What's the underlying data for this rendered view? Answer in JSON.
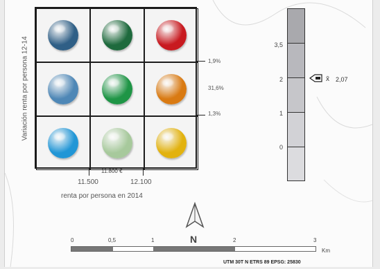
{
  "matrix": {
    "y_axis_label": "Variación renta por persona 12-14",
    "x_axis_label": "renta por persona en 2014",
    "x_ticks": [
      "11.500",
      "12.100"
    ],
    "x_mid_label": "11.800 €",
    "y_breaks": [
      "1,9%",
      "31,6%",
      "1,3%"
    ],
    "cells": [
      {
        "color": "#2f5f86",
        "name": "dark-blue-sphere-icon"
      },
      {
        "color": "#1e6a3d",
        "name": "dark-green-sphere-icon"
      },
      {
        "color": "#c81a20",
        "name": "red-sphere-icon"
      },
      {
        "color": "#4e87b6",
        "name": "mid-blue-sphere-icon"
      },
      {
        "color": "#1f9546",
        "name": "mid-green-sphere-icon"
      },
      {
        "color": "#d97a12",
        "name": "orange-sphere-icon"
      },
      {
        "color": "#2196d6",
        "name": "light-blue-sphere-icon"
      },
      {
        "color": "#a7c99c",
        "name": "light-green-sphere-icon"
      },
      {
        "color": "#e2b20f",
        "name": "yellow-sphere-icon"
      }
    ]
  },
  "legend": {
    "ticks": [
      "3,5",
      "2",
      "1",
      "0"
    ],
    "marker_symbol": "x̄",
    "marker_value": "2,07",
    "colors": [
      "#a9a9ad",
      "#b8b8bd",
      "#c6c6ca",
      "#d2d2d6",
      "#dcdcdf",
      "#e7e7e9"
    ]
  },
  "scale": {
    "labels": [
      "0",
      "0,5",
      "1",
      "2",
      "3"
    ],
    "unit": "Km",
    "north_label": "N"
  },
  "credit": "UTM 30T N ETRS 89 EPSG: 25830"
}
